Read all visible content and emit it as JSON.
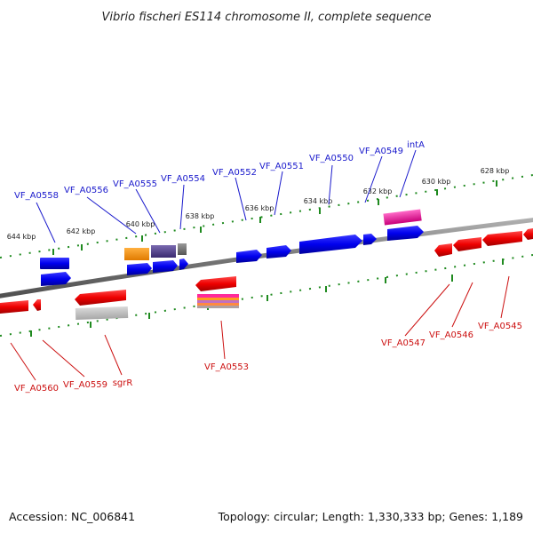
{
  "title": "Vibrio fischeri ES114 chromosome II, complete sequence",
  "accession": "Accession: NC_006841",
  "summary": "Topology: circular; Length: 1,330,333 bp; Genes: 1,189",
  "colors": {
    "forward_label": "#1a1acc",
    "reverse_label": "#cc1111",
    "tick_track": "#1f8a1f",
    "backbone": "#7a7a7a"
  },
  "ticks_top": [
    {
      "label": "644 kbp"
    },
    {
      "label": "642 kbp"
    },
    {
      "label": "640 kbp"
    },
    {
      "label": "638 kbp"
    },
    {
      "label": "636 kbp"
    },
    {
      "label": "634 kbp"
    },
    {
      "label": "632 kbp"
    },
    {
      "label": "630 kbp"
    },
    {
      "label": "628 kbp"
    }
  ],
  "forward_labels": [
    "VF_A0558",
    "VF_A0556",
    "VF_A0555",
    "VF_A0554",
    "VF_A0552",
    "VF_A0551",
    "VF_A0550",
    "VF_A0549",
    "intA"
  ],
  "reverse_labels": [
    "VF_A0560",
    "VF_A0559",
    "sgrR",
    "VF_A0553",
    "VF_A0547",
    "VF_A0546",
    "VF_A0545"
  ]
}
